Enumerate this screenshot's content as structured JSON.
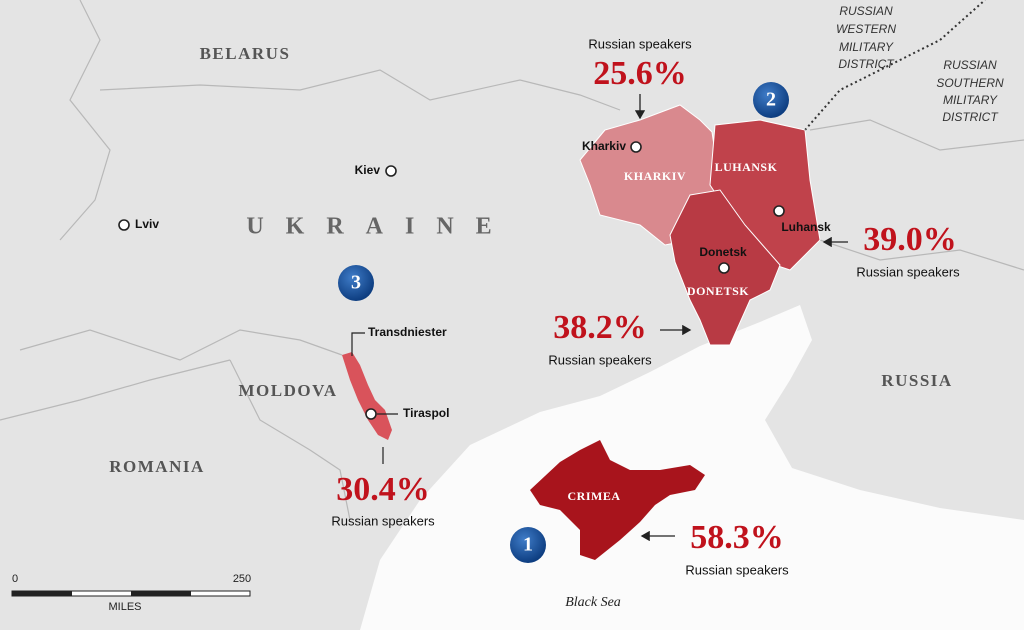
{
  "countries": [
    "BELARUS",
    "UKRAINE",
    "MOLDOVA",
    "ROMANIA",
    "RUSSIA"
  ],
  "districts": [
    [
      "RUSSIAN",
      "WESTERN",
      "MILITARY",
      "DISTRICT"
    ],
    [
      "RUSSIAN",
      "SOUTHERN",
      "MILITARY",
      "DISTRICT"
    ]
  ],
  "cities": [
    "Kiev",
    "Lviv",
    "Kharkiv",
    "Luhansk",
    "Donetsk",
    "Tiraspol",
    "Transdniester"
  ],
  "regions": [
    {
      "label": "KHARKIV",
      "percent": "25.6%",
      "caption": "Russian speakers"
    },
    {
      "label": "LUHANSK",
      "percent": "39.0%",
      "caption": "Russian speakers"
    },
    {
      "label": "DONETSK",
      "percent": "38.2%",
      "caption": "Russian speakers"
    },
    {
      "label": "CRIMEA",
      "percent": "58.3%",
      "caption": "Russian speakers"
    },
    {
      "percent": "30.4%",
      "caption": "Russian speakers"
    }
  ],
  "markers": [
    1,
    2,
    3
  ],
  "water": "Black Sea",
  "scale": {
    "start": "0",
    "end": "250",
    "unit": "MILES"
  }
}
